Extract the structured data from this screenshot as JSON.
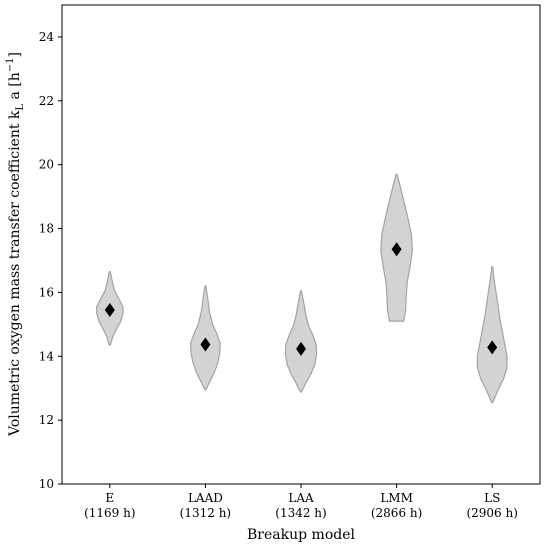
{
  "chart_data": {
    "type": "violin",
    "xlabel": "Breakup model",
    "ylabel": "Volumetric oxygen mass transfer coefficient k",
    "ylabel_sub": "L",
    "ylabel_tail": " a [h",
    "ylabel_sup": "−1",
    "ylabel_close": "]",
    "ylim": [
      10,
      25
    ],
    "yticks": [
      10,
      12,
      14,
      16,
      18,
      20,
      22,
      24
    ],
    "grid": false,
    "marker": "diamond",
    "categories": [
      {
        "name": "E",
        "hours": "(1169 h)",
        "median": 15.45,
        "min": 14.35,
        "max": 16.65,
        "profile": [
          [
            14.35,
            0.02
          ],
          [
            14.6,
            0.12
          ],
          [
            14.85,
            0.28
          ],
          [
            15.1,
            0.46
          ],
          [
            15.35,
            0.55
          ],
          [
            15.55,
            0.55
          ],
          [
            15.8,
            0.38
          ],
          [
            16.05,
            0.2
          ],
          [
            16.35,
            0.1
          ],
          [
            16.65,
            0.02
          ]
        ]
      },
      {
        "name": "LAAD",
        "hours": "(1312 h)",
        "median": 14.37,
        "min": 12.95,
        "max": 16.2,
        "profile": [
          [
            12.95,
            0.02
          ],
          [
            13.2,
            0.18
          ],
          [
            13.5,
            0.38
          ],
          [
            13.8,
            0.52
          ],
          [
            14.1,
            0.6
          ],
          [
            14.4,
            0.62
          ],
          [
            14.7,
            0.48
          ],
          [
            15.0,
            0.3
          ],
          [
            15.4,
            0.17
          ],
          [
            15.8,
            0.1
          ],
          [
            16.2,
            0.02
          ]
        ]
      },
      {
        "name": "LAA",
        "hours": "(1342 h)",
        "median": 14.23,
        "min": 12.88,
        "max": 16.05,
        "profile": [
          [
            12.88,
            0.02
          ],
          [
            13.15,
            0.2
          ],
          [
            13.45,
            0.42
          ],
          [
            13.75,
            0.58
          ],
          [
            14.05,
            0.65
          ],
          [
            14.35,
            0.64
          ],
          [
            14.65,
            0.5
          ],
          [
            14.95,
            0.32
          ],
          [
            15.3,
            0.2
          ],
          [
            15.7,
            0.11
          ],
          [
            16.05,
            0.02
          ]
        ]
      },
      {
        "name": "LMM",
        "hours": "(2866 h)",
        "median": 17.35,
        "min": 15.1,
        "max": 19.7,
        "profile": [
          [
            15.1,
            0.3
          ],
          [
            15.45,
            0.38
          ],
          [
            15.85,
            0.4
          ],
          [
            16.3,
            0.44
          ],
          [
            16.8,
            0.56
          ],
          [
            17.3,
            0.66
          ],
          [
            17.8,
            0.62
          ],
          [
            18.3,
            0.48
          ],
          [
            18.8,
            0.32
          ],
          [
            19.3,
            0.16
          ],
          [
            19.7,
            0.02
          ]
        ]
      },
      {
        "name": "LS",
        "hours": "(2906 h)",
        "median": 14.28,
        "min": 12.55,
        "max": 16.8,
        "profile": [
          [
            12.55,
            0.02
          ],
          [
            12.9,
            0.22
          ],
          [
            13.3,
            0.48
          ],
          [
            13.65,
            0.62
          ],
          [
            14.0,
            0.62
          ],
          [
            14.4,
            0.52
          ],
          [
            14.8,
            0.42
          ],
          [
            15.2,
            0.32
          ],
          [
            15.6,
            0.24
          ],
          [
            16.0,
            0.16
          ],
          [
            16.4,
            0.08
          ],
          [
            16.8,
            0.02
          ]
        ]
      }
    ]
  }
}
